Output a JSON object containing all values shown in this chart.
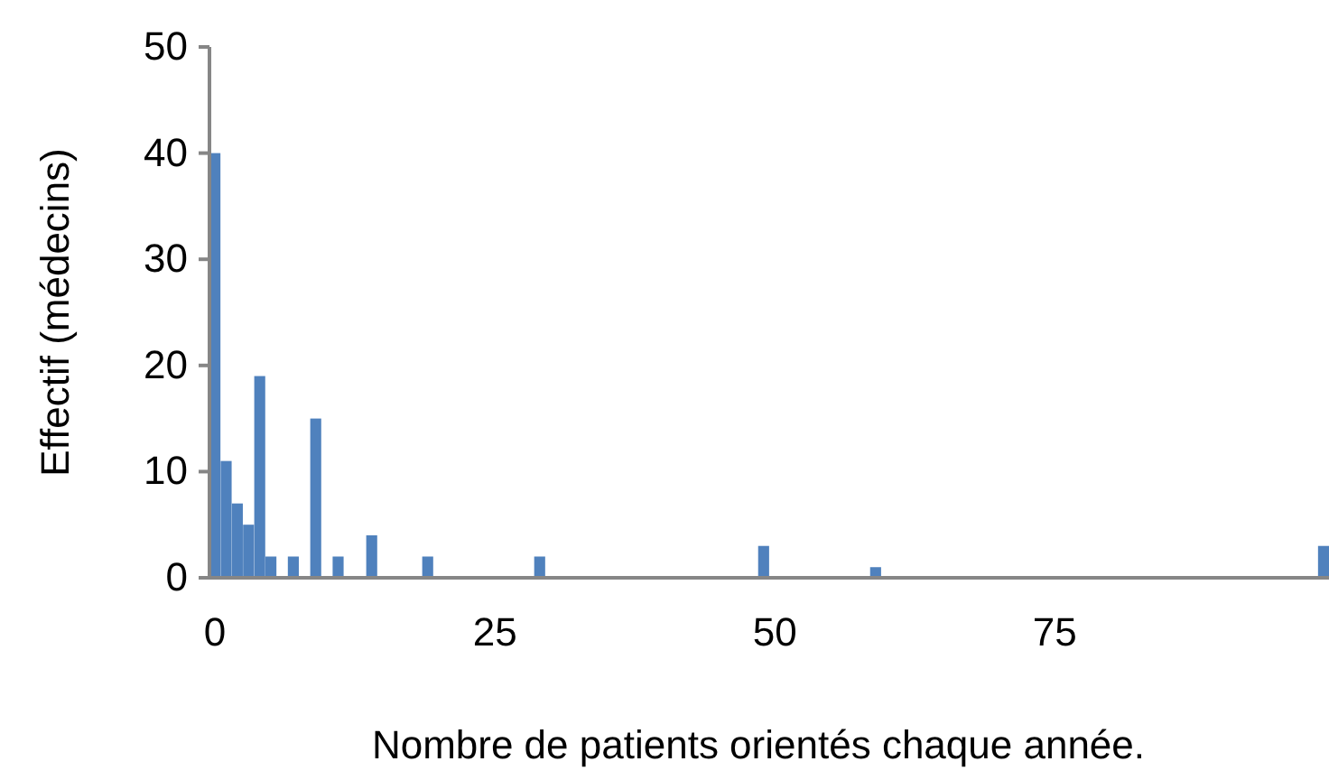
{
  "chart_data": {
    "type": "bar",
    "xlabel": "Nombre de patients orientés chaque année.",
    "ylabel": "Effectif (médecins)",
    "categories": [
      "0",
      null,
      null,
      null,
      null,
      null,
      null,
      null,
      null,
      null,
      null,
      null,
      null,
      null,
      null,
      null,
      null,
      null,
      null,
      null,
      null,
      null,
      null,
      null,
      null,
      "25",
      null,
      null,
      null,
      null,
      null,
      null,
      null,
      null,
      null,
      null,
      null,
      null,
      null,
      null,
      null,
      null,
      null,
      null,
      null,
      null,
      null,
      null,
      null,
      null,
      "50",
      null,
      null,
      null,
      null,
      null,
      null,
      null,
      null,
      null,
      null,
      null,
      null,
      null,
      null,
      null,
      null,
      null,
      null,
      null,
      null,
      null,
      null,
      null,
      null,
      "75",
      null,
      null,
      null,
      null,
      null,
      null,
      null,
      null,
      null,
      null,
      null,
      null,
      null,
      null,
      null,
      null,
      null,
      null,
      null,
      null,
      null,
      null,
      null,
      null
    ],
    "values": [
      40,
      11,
      7,
      5,
      19,
      2,
      0,
      2,
      0,
      15,
      0,
      2,
      0,
      0,
      4,
      0,
      0,
      0,
      0,
      2,
      0,
      0,
      0,
      0,
      0,
      0,
      0,
      0,
      0,
      2,
      0,
      0,
      0,
      0,
      0,
      0,
      0,
      0,
      0,
      0,
      0,
      0,
      0,
      0,
      0,
      0,
      0,
      0,
      0,
      3,
      0,
      0,
      0,
      0,
      0,
      0,
      0,
      0,
      0,
      1,
      0,
      0,
      0,
      0,
      0,
      0,
      0,
      0,
      0,
      0,
      0,
      0,
      0,
      0,
      0,
      0,
      0,
      0,
      0,
      0,
      0,
      0,
      0,
      0,
      0,
      0,
      0,
      0,
      0,
      0,
      0,
      0,
      0,
      0,
      0,
      0,
      0,
      0,
      0,
      3
    ],
    "color": "#4f81bd",
    "ylim": [
      0,
      50
    ],
    "yticks": [
      0,
      10,
      20,
      30,
      40,
      50
    ]
  }
}
